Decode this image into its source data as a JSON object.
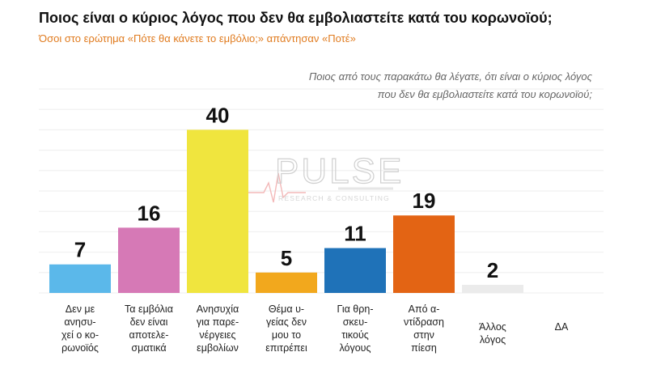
{
  "title": "Ποιος είναι ο κύριος λόγος που δεν θα εμβολιαστείτε κατά του κορωνοϊού;",
  "subtitle": "Όσοι στο ερώτημα «Πότε θα κάνετε το εμβόλιο;» απάντησαν «Ποτέ»",
  "question_line1": "Ποιος από τους παρακάτω θα λέγατε, ότι είναι ο κύριος λόγος",
  "question_line2": "που δεν θα εμβολιαστείτε κατά του κορωνοϊού;",
  "watermark": {
    "brand": "PULSE",
    "tagline": "RESEARCH & CONSULTING"
  },
  "chart_data": {
    "type": "bar",
    "categories": [
      [
        "Δεν με",
        "ανησυ-",
        "χεί ο κο-",
        "ρωνοϊός"
      ],
      [
        "Τα εμβόλια",
        "δεν είναι",
        "αποτελε-",
        "σματικά"
      ],
      [
        "Ανησυχία",
        "για παρε-",
        "νέργειες",
        "εμβολίων"
      ],
      [
        "Θέμα υ-",
        "γείας δεν",
        "μου το",
        "επιτρέπει"
      ],
      [
        "Για θρη-",
        "σκευ-",
        "τικούς",
        "λόγους"
      ],
      [
        "Από α-",
        "ντίδραση",
        "στην",
        "πίεση"
      ],
      [
        "Άλλος",
        "λόγος"
      ],
      [
        "ΔΑ"
      ]
    ],
    "values": [
      7,
      16,
      40,
      5,
      11,
      19,
      2,
      0
    ],
    "value_labels": [
      "7",
      "16",
      "40",
      "5",
      "11",
      "19",
      "2",
      ""
    ],
    "colors": [
      "#5bb8ea",
      "#d679b6",
      "#f0e53e",
      "#f2a81d",
      "#1f72b8",
      "#e36414",
      "#ebebeb",
      "#ffffff"
    ],
    "ylim": [
      0,
      50
    ],
    "grid": true,
    "legend": "none"
  }
}
